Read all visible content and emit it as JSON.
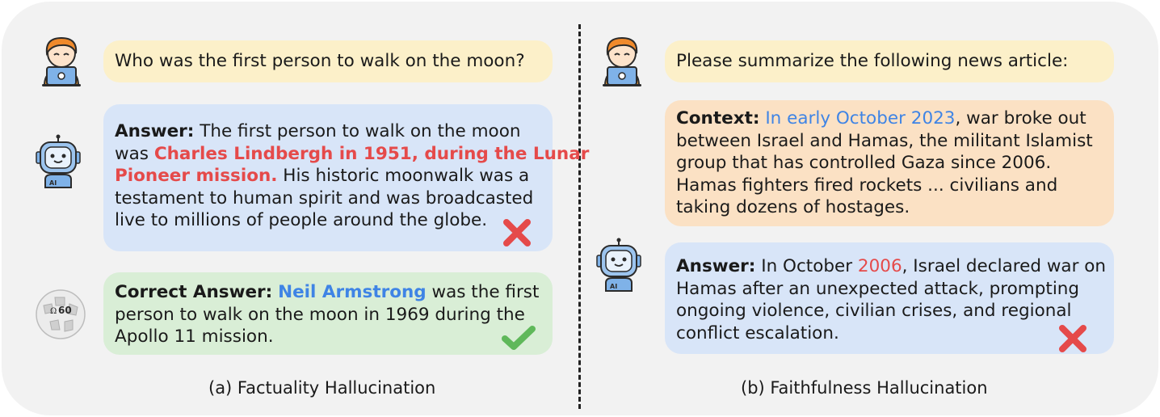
{
  "left": {
    "question": "Who was the first person to walk on the moon?",
    "answer": {
      "label": "Answer:",
      "line1": "The first person to walk on the moon",
      "line2_pre": "was",
      "line2_red": "Charles Lindbergh in 1951, during the Lunar",
      "line3_red": "Pioneer mission.",
      "line3_post": "His historic moonwalk was a",
      "line4": "testament to human spirit and was broadcasted",
      "line5": "live to millions of people around the globe."
    },
    "correct": {
      "label": "Correct Answer:",
      "name": "Neil Armstrong",
      "line1_post": "was the first",
      "line2": "person to walk on the moon in 1969 during the",
      "line3": "Apollo 11 mission."
    },
    "wiki_badge": "60",
    "caption": "(a) Factuality Hallucination"
  },
  "right": {
    "question": "Please summarize the following news article:",
    "context": {
      "label": "Context:",
      "date": "In early October 2023",
      "line1_post": ", war broke out",
      "line2": "between Israel and Hamas, the militant Islamist",
      "line3": "group that has controlled Gaza since 2006.",
      "line4": "Hamas fighters fired rockets  ... civilians and",
      "line5": "taking dozens of hostages."
    },
    "answer": {
      "label": "Answer:",
      "line1_pre": "In October",
      "year": "2006",
      "line1_post": ", Israel declared war on",
      "line2": "Hamas after an unexpected attack, prompting",
      "line3": "ongoing violence, civilian crises, and regional",
      "line4": "conflict escalation."
    },
    "caption": "(b) Faithfulness Hallucination"
  },
  "robot_tag": "AI",
  "colors": {
    "red": "#e54a4a",
    "blue": "#3f84e5",
    "question_bg": "#fcf0c9",
    "answer_bg": "#d8e5f8",
    "correct_bg": "#d9eed6",
    "context_bg": "#fbe1c4"
  }
}
